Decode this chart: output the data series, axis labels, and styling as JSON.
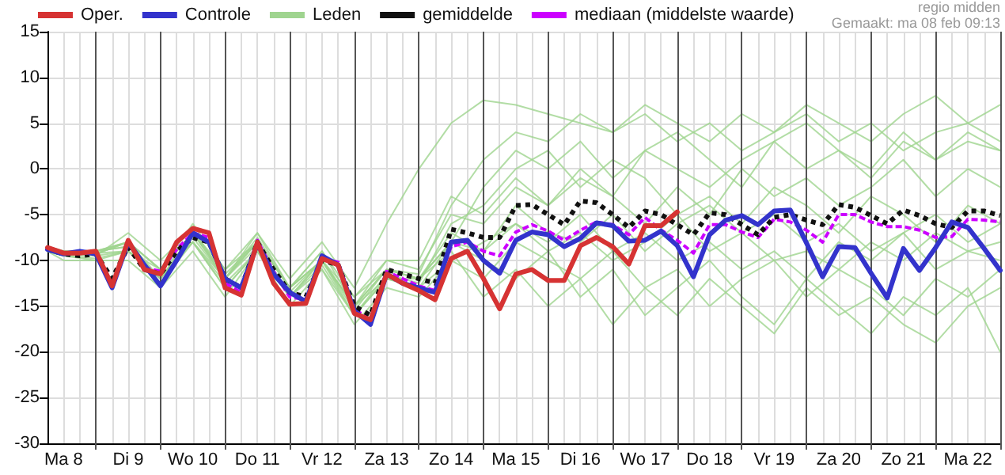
{
  "chart_data": {
    "type": "line",
    "annotations": [
      "regio midden",
      "Gemaakt: ma 08 feb 09:13"
    ],
    "categories": [
      null,
      "Ma 8",
      null,
      null,
      null,
      "Di 9",
      null,
      null,
      null,
      "Wo 10",
      null,
      null,
      null,
      "Do 11",
      null,
      null,
      null,
      "Vr 12",
      null,
      null,
      null,
      "Za 13",
      null,
      null,
      null,
      "Zo 14",
      null,
      null,
      null,
      "Ma 15",
      null,
      null,
      null,
      "Di 16",
      null,
      null,
      null,
      "Wo 17",
      null,
      null,
      null,
      "Do 18",
      null,
      null,
      null,
      "Vr 19",
      null,
      null,
      null,
      "Za 20",
      null,
      null,
      null,
      "Zo 21",
      null,
      null,
      null,
      "Ma 22",
      null,
      null
    ],
    "ylim": [
      -30,
      15
    ],
    "yticks": [
      -30,
      -25,
      -20,
      -15,
      -10,
      -5,
      0,
      5,
      10,
      15
    ],
    "grid": true,
    "legend": "top",
    "marker": "none",
    "series": [
      {
        "name": "Oper.",
        "color": "#d63333",
        "values": [
          -8.6,
          -9.2,
          -9.2,
          -9,
          -12.8,
          -7.8,
          -11,
          -11.5,
          -8,
          -6.5,
          -7,
          -13,
          -13.8,
          -8,
          -12.5,
          -14.8,
          -14.7,
          -9.8,
          -10.5,
          -15.8,
          -16.5,
          -11.5,
          -12.5,
          -13.3,
          -14.3,
          -9.8,
          -9,
          -12,
          -15.3,
          -11.5,
          -11,
          -12.2,
          -12.2,
          -8.4,
          -7.5,
          -8.5,
          -10.4,
          -6.2,
          -6.2,
          -4.7,
          null,
          null,
          null,
          null,
          null,
          null,
          null,
          null,
          null,
          null,
          null,
          null,
          null,
          null,
          null,
          null,
          null,
          null,
          null,
          null
        ]
      },
      {
        "name": "Controle",
        "color": "#3333cc",
        "values": [
          -8.8,
          -9.3,
          -9,
          -9.3,
          -13,
          -8,
          -10.5,
          -12.8,
          -10,
          -7,
          -8,
          -12,
          -13,
          -8.2,
          -11.5,
          -13.5,
          -14.5,
          -9.5,
          -10.5,
          -15.5,
          -17,
          -11.5,
          -12.5,
          -13,
          -13.5,
          -8,
          -7.8,
          -10,
          -11.4,
          -7.8,
          -6.9,
          -7.2,
          -8.5,
          -7.6,
          -5.9,
          -6.2,
          -7.9,
          -7.8,
          -6.8,
          -8.4,
          -11.8,
          -7.2,
          -5.6,
          -5.1,
          -6.1,
          -4.6,
          -4.5,
          -8.1,
          -11.8,
          -8.5,
          -8.6,
          -11.4,
          -14.1,
          -8.7,
          -11.1,
          -8.6,
          -5.8,
          -6.4,
          -8.7,
          -11.1
        ]
      },
      {
        "name": "Leden",
        "color": "#9fd48f",
        "values": [
          -8.5,
          -9,
          null,
          -9,
          null,
          -8,
          null,
          -11,
          null,
          -6,
          null,
          -11,
          null,
          -7,
          null,
          -12,
          null,
          -8,
          null,
          -13,
          null,
          -6,
          null,
          0,
          null,
          5,
          null,
          7.5,
          null,
          7,
          null,
          6,
          null,
          5,
          null,
          4,
          null,
          6,
          null,
          3,
          null,
          5,
          null,
          2,
          null,
          4,
          null,
          6,
          null,
          3,
          null,
          5,
          null,
          2,
          null,
          4,
          null,
          5,
          null,
          3
        ]
      },
      {
        "color": "#9fd48f",
        "values": [
          -9,
          -9.5,
          null,
          -10,
          null,
          -9,
          null,
          -12,
          null,
          -8,
          null,
          -13,
          null,
          -9,
          null,
          -14,
          null,
          -11,
          null,
          -16,
          null,
          -12,
          null,
          -13,
          null,
          -8,
          null,
          -2,
          null,
          2,
          null,
          0,
          null,
          3,
          null,
          -1,
          null,
          2,
          null,
          4,
          null,
          1,
          null,
          -2,
          null,
          3,
          null,
          5,
          null,
          2,
          null,
          0,
          null,
          4,
          null,
          1,
          null,
          3,
          null,
          2
        ]
      },
      {
        "color": "#9fd48f",
        "values": [
          -8.7,
          -9,
          null,
          -9.5,
          null,
          -7,
          null,
          -10,
          null,
          -6.5,
          null,
          -12,
          null,
          -7,
          null,
          -13,
          null,
          -9,
          null,
          -14,
          null,
          -10,
          null,
          -10,
          null,
          -3,
          null,
          -5,
          null,
          -1,
          null,
          -4,
          null,
          0,
          null,
          -3,
          null,
          -6,
          null,
          -2,
          null,
          -5,
          null,
          0,
          null,
          -3,
          null,
          -1,
          null,
          -4,
          null,
          -2,
          null,
          1,
          null,
          -3,
          null,
          0,
          null,
          -2
        ]
      },
      {
        "color": "#9fd48f",
        "values": [
          -9,
          -10,
          null,
          -10,
          null,
          -10,
          null,
          -13,
          null,
          -9,
          null,
          -14,
          null,
          -9,
          null,
          -15,
          null,
          -11,
          null,
          -17,
          null,
          -13,
          null,
          -14,
          null,
          -10,
          null,
          -12,
          null,
          -8,
          null,
          -10,
          null,
          -12,
          null,
          -9,
          null,
          -13,
          null,
          -11,
          null,
          -15,
          null,
          -12,
          null,
          -10,
          null,
          -14,
          null,
          -11,
          null,
          -13,
          null,
          -16,
          null,
          -12,
          null,
          -14,
          null,
          -11
        ]
      },
      {
        "color": "#9fd48f",
        "values": [
          -8.6,
          -9.3,
          null,
          -9,
          null,
          -8,
          null,
          -12,
          null,
          -7,
          null,
          -11,
          null,
          -8,
          null,
          -13,
          null,
          -10,
          null,
          -15,
          null,
          -11,
          null,
          -12,
          null,
          -8,
          null,
          -9,
          null,
          -6,
          null,
          -8,
          null,
          -5,
          null,
          -9,
          null,
          -7,
          null,
          -10,
          null,
          -8,
          null,
          -11,
          null,
          -9,
          null,
          -12,
          null,
          -8,
          null,
          -10,
          null,
          -7,
          null,
          -11,
          null,
          -9,
          null,
          -8
        ]
      },
      {
        "color": "#9fd48f",
        "values": [
          -8.9,
          -9,
          null,
          -9.2,
          null,
          -9,
          null,
          -11,
          null,
          -8,
          null,
          -12,
          null,
          -8,
          null,
          -14,
          null,
          -10,
          null,
          -15,
          null,
          -12,
          null,
          -12,
          null,
          -9,
          null,
          -14,
          null,
          -11,
          null,
          -15,
          null,
          -12,
          null,
          -17,
          null,
          -13,
          null,
          -16,
          null,
          -12,
          null,
          -15,
          null,
          -18,
          null,
          -13,
          null,
          -16,
          null,
          -14,
          null,
          -17,
          null,
          -19,
          null,
          -15,
          null,
          -13
        ]
      },
      {
        "color": "#9fd48f",
        "values": [
          -8.8,
          -9.5,
          null,
          -9,
          null,
          -8.5,
          null,
          -12,
          null,
          -7,
          null,
          -12,
          null,
          -8,
          null,
          -13,
          null,
          -9,
          null,
          -15,
          null,
          -10,
          null,
          -11,
          null,
          -5,
          null,
          -6,
          null,
          -2,
          null,
          -4,
          null,
          -1,
          null,
          -3,
          null,
          2,
          null,
          0,
          null,
          -2,
          null,
          1,
          null,
          3,
          null,
          0,
          null,
          2,
          null,
          -1,
          null,
          3,
          null,
          1,
          null,
          4,
          null,
          2
        ]
      },
      {
        "color": "#9fd48f",
        "values": [
          -8.5,
          -9,
          null,
          -9.3,
          null,
          -8,
          null,
          -11,
          null,
          -7,
          null,
          -12,
          null,
          -7.5,
          null,
          -13,
          null,
          -10,
          null,
          -14,
          null,
          -11,
          null,
          -12,
          null,
          -7,
          null,
          -9,
          null,
          -4,
          null,
          -7,
          null,
          -8,
          null,
          -5,
          null,
          -9,
          null,
          -6,
          null,
          -4,
          null,
          -7,
          null,
          -5,
          null,
          -8,
          null,
          -6,
          null,
          -9,
          null,
          -7,
          null,
          -5,
          null,
          -8,
          null,
          -6
        ]
      },
      {
        "color": "#9fd48f",
        "values": [
          -9,
          -9.5,
          null,
          -9.8,
          null,
          -9,
          null,
          -12.5,
          null,
          -8,
          null,
          -13,
          null,
          -9,
          null,
          -14,
          null,
          -10.5,
          null,
          -16,
          null,
          -11.5,
          null,
          -12.5,
          null,
          -6,
          null,
          -4,
          null,
          0,
          null,
          2,
          null,
          -2,
          null,
          1,
          null,
          -1,
          null,
          -5,
          null,
          -3,
          null,
          -6,
          null,
          -2,
          null,
          -4,
          null,
          -7,
          null,
          -3,
          null,
          -5,
          null,
          -8,
          null,
          -4,
          null,
          -6
        ]
      },
      {
        "color": "#9fd48f",
        "values": [
          -8.7,
          -9.2,
          null,
          -9.3,
          null,
          -8,
          null,
          -11,
          null,
          -7,
          null,
          -11.5,
          null,
          -8,
          null,
          -13,
          null,
          -10,
          null,
          -15,
          null,
          -11,
          null,
          -12,
          null,
          -8,
          null,
          -10,
          null,
          -12,
          null,
          -9,
          null,
          -14,
          null,
          -11,
          null,
          -16,
          null,
          -13,
          null,
          -10,
          null,
          -14,
          null,
          -17,
          null,
          -12,
          null,
          -15,
          null,
          -18,
          null,
          -14,
          null,
          -16,
          null,
          -13,
          null,
          -20
        ]
      },
      {
        "color": "#9fd48f",
        "values": [
          -8.8,
          -9.1,
          null,
          -9,
          null,
          -8.5,
          null,
          -12,
          null,
          -7.5,
          null,
          -12,
          null,
          -8.5,
          null,
          -13.5,
          null,
          -10,
          null,
          -15.5,
          null,
          -11,
          null,
          -11.5,
          null,
          -4,
          null,
          1,
          null,
          4,
          null,
          3,
          null,
          6,
          null,
          4,
          null,
          7,
          null,
          5,
          null,
          3,
          null,
          6,
          null,
          4,
          null,
          7,
          null,
          5,
          null,
          3,
          null,
          6,
          null,
          8,
          null,
          5,
          null,
          7
        ]
      },
      {
        "color": "#9fd48f",
        "values": [
          -9,
          -9.4,
          null,
          -9.5,
          null,
          -9,
          null,
          -12,
          null,
          -8,
          null,
          -12.5,
          null,
          -9,
          null,
          -14,
          null,
          -10,
          null,
          -16,
          null,
          -12,
          null,
          -13,
          null,
          -10,
          null,
          -8,
          null,
          -6,
          null,
          -9,
          null,
          -7,
          null,
          -10,
          null,
          -8,
          null,
          -5,
          null,
          -9,
          null,
          -7,
          null,
          -10,
          null,
          -9,
          null,
          -11,
          null,
          -8,
          null,
          -10,
          null,
          -7,
          null,
          -9,
          null,
          -10
        ]
      },
      {
        "name": "gemiddelde",
        "color": "#111111",
        "line_style": "dotted",
        "values": [
          -8.8,
          -9.3,
          -9.5,
          -9.3,
          -12,
          -8.5,
          -11,
          -11.5,
          -9,
          -7.5,
          -8,
          -12,
          -13,
          -8,
          -11,
          -13.5,
          -14,
          -10,
          -10.5,
          -15,
          -16,
          -11,
          -11.5,
          -12,
          -12.5,
          -6.6,
          -7,
          -7.5,
          -7.5,
          -4,
          -3.9,
          -5,
          -6.1,
          -3.5,
          -3.7,
          -5,
          -6.4,
          -4.6,
          -5,
          -6.1,
          -7.2,
          -4.8,
          -5,
          -6.1,
          -7.2,
          -5.3,
          -5,
          -5.6,
          -6.1,
          -3.9,
          -4.2,
          -5.1,
          -6,
          -4.5,
          -5.1,
          -6,
          -6.4,
          -4.6,
          -4.6,
          -5.1
        ]
      },
      {
        "name": "mediaan (middelste waarde)",
        "color": "#cc00ff",
        "line_style": "dashed",
        "values": [
          null,
          null,
          null,
          null,
          null,
          null,
          -10.8,
          -11.2,
          -8.8,
          -7,
          -7.5,
          -12.5,
          -13.5,
          -7.8,
          -11.2,
          -14,
          -14.3,
          -9.8,
          -10.2,
          -15.3,
          -16.5,
          -11.2,
          -12,
          -12.8,
          -13.3,
          -8.5,
          -8,
          -9,
          -9.5,
          -6.9,
          -6.1,
          -6.8,
          -7.8,
          -6.7,
          -5.8,
          -6.1,
          -7.2,
          -5.3,
          -6.7,
          -7.8,
          -9.2,
          -6.1,
          -6.1,
          -6.9,
          -7.5,
          -5.5,
          -5.8,
          -6.7,
          -8,
          -5,
          -5,
          -5.8,
          -6.3,
          -6.3,
          -6.7,
          -7.5,
          -7.4,
          -5.5,
          -5.6,
          -5.8
        ]
      }
    ]
  }
}
